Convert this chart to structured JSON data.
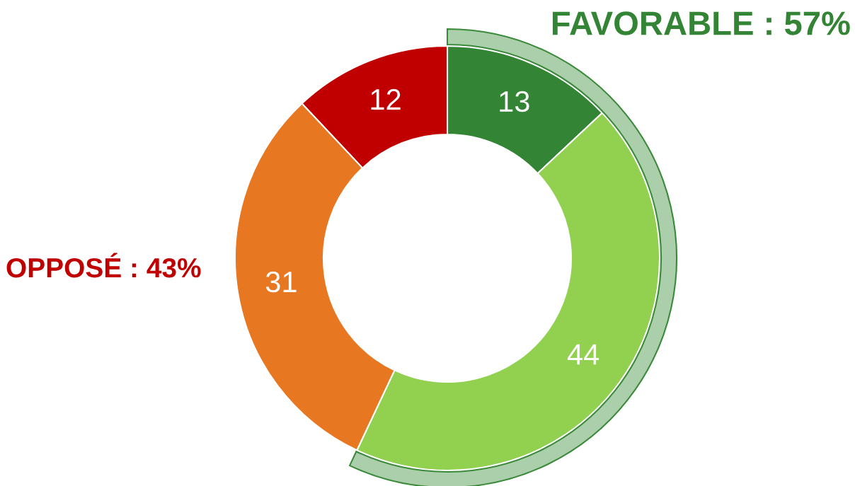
{
  "chart_data": {
    "type": "donut",
    "categories": [
      null,
      null,
      null,
      null
    ],
    "values": [
      13,
      44,
      31,
      12
    ],
    "colors": [
      "#338535",
      "#92d050",
      "#e87722",
      "#c00000"
    ],
    "data_labels": true,
    "annotations": [
      "FAVORABLE : 57%",
      "OPPOSÉ : 43%"
    ]
  }
}
